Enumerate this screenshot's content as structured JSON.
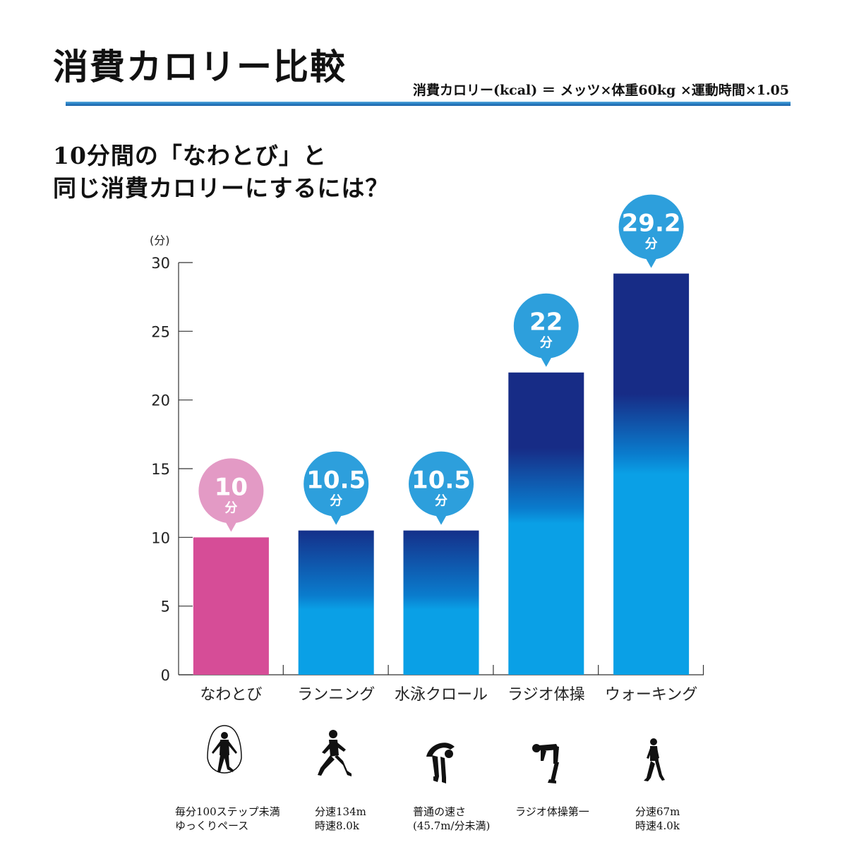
{
  "header": {
    "title": "消費カロリー比較",
    "formula": "消費カロリー(kcal) ＝ メッツ×体重60kg ×運動時間×1.05"
  },
  "subtitle": {
    "line1": "10分間の「なわとび」と",
    "line2": "同じ消費カロリーにするには？"
  },
  "colors": {
    "rule": "#2a83c6",
    "jump_bar": "#d64d97",
    "jump_bubble": "#e39ac5",
    "blue_top": "#15308a",
    "blue_bottom": "#0aa0e6",
    "bubble_blue": "#2d9fdc"
  },
  "chart_data": {
    "type": "bar",
    "y_unit": "(分)",
    "ylim": [
      0,
      30
    ],
    "yticks": [
      0,
      5,
      10,
      15,
      20,
      25,
      30
    ],
    "categories": [
      "なわとび",
      "ランニング",
      "水泳クロール",
      "ラジオ体操",
      "ウォーキング"
    ],
    "values": [
      10,
      10.5,
      10.5,
      22,
      29.2
    ],
    "value_labels": [
      "10",
      "10.5",
      "10.5",
      "22",
      "29.2"
    ],
    "value_unit": "分",
    "highlight_index": 0,
    "grid": false
  },
  "activities": [
    {
      "icon": "jump-rope-figure-icon",
      "note": [
        "毎分100ステップ未満",
        "ゆっくりペース"
      ]
    },
    {
      "icon": "runner-figure-icon",
      "note": [
        "分速134m",
        "時速8.0k"
      ]
    },
    {
      "icon": "swimmer-figure-icon",
      "note": [
        "普通の速さ",
        "(45.7m/分未満)"
      ]
    },
    {
      "icon": "radio-exercise-figure-icon",
      "note": [
        "ラジオ体操第一"
      ]
    },
    {
      "icon": "walker-figure-icon",
      "note": [
        "分速67m",
        "時速4.0k"
      ]
    }
  ]
}
